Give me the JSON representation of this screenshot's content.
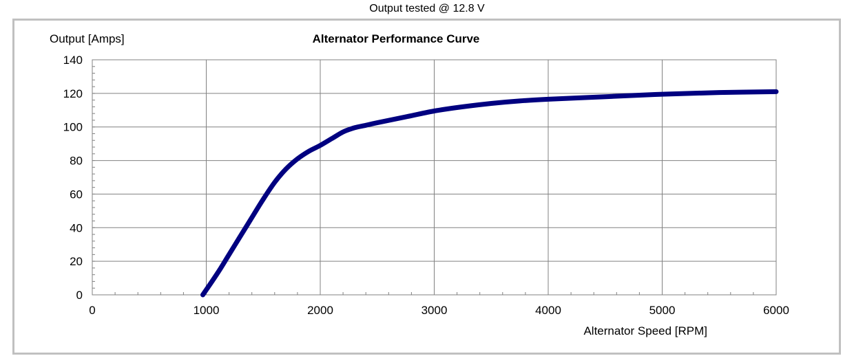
{
  "caption": "Output tested @ 12.8 V",
  "chart_data": {
    "type": "line",
    "title": "Alternator Performance Curve",
    "xlabel": "Alternator Speed [RPM]",
    "ylabel": "Output [Amps]",
    "xlim": [
      0,
      6000
    ],
    "ylim": [
      0,
      140
    ],
    "xticks": [
      0,
      1000,
      2000,
      3000,
      4000,
      5000,
      6000
    ],
    "yticks": [
      0,
      20,
      40,
      60,
      80,
      100,
      120,
      140
    ],
    "xtick_labels": [
      "0",
      "1000",
      "2000",
      "3000",
      "4000",
      "5000",
      "6000"
    ],
    "ytick_labels": [
      "0",
      "20",
      "40",
      "60",
      "80",
      "100",
      "120",
      "140"
    ],
    "grid": true,
    "series": [
      {
        "color": "#000080",
        "x": [
          970,
          1100,
          1200,
          1300,
          1400,
          1500,
          1600,
          1700,
          1800,
          1900,
          2000,
          2100,
          2200,
          2300,
          2400,
          2500,
          2750,
          3000,
          3250,
          3500,
          3750,
          4000,
          4500,
          5000,
          5500,
          6000
        ],
        "y": [
          0,
          13,
          24,
          35,
          46,
          57,
          67,
          75,
          81,
          85.5,
          89,
          93,
          97,
          99.5,
          101,
          102.5,
          106,
          109.5,
          112,
          114,
          115.5,
          116.5,
          118,
          119.5,
          120.5,
          121
        ]
      }
    ]
  }
}
